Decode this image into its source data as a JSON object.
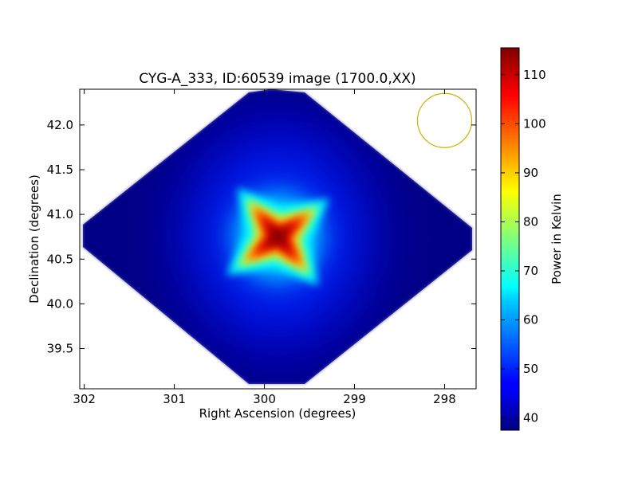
{
  "chart_data": {
    "type": "heatmap",
    "title": "CYG-A_333, ID:60539 image (1700.0,XX)",
    "xlabel": "Right Ascension (degrees)",
    "ylabel": "Declination (degrees)",
    "xlim": [
      302.05,
      297.65
    ],
    "ylim": [
      39.05,
      42.4
    ],
    "x_inverted": true,
    "xticks": [
      "302",
      "301",
      "300",
      "299",
      "298"
    ],
    "yticks": [
      "39.5",
      "40.0",
      "40.5",
      "41.0",
      "41.5",
      "42.0"
    ],
    "colorbar": {
      "label": "Power in Kelvin",
      "range": [
        37.5,
        115.5
      ],
      "ticks": [
        "40",
        "50",
        "60",
        "70",
        "80",
        "90",
        "100",
        "110"
      ],
      "colormap": "jet"
    },
    "peak": {
      "ra": 299.85,
      "dec": 40.75,
      "value": 115
    },
    "background_value": 38,
    "footprint": "diamond",
    "beam_circle": {
      "ra": 298.0,
      "dec": 42.05,
      "color": "#c8b400"
    },
    "grid": false
  }
}
